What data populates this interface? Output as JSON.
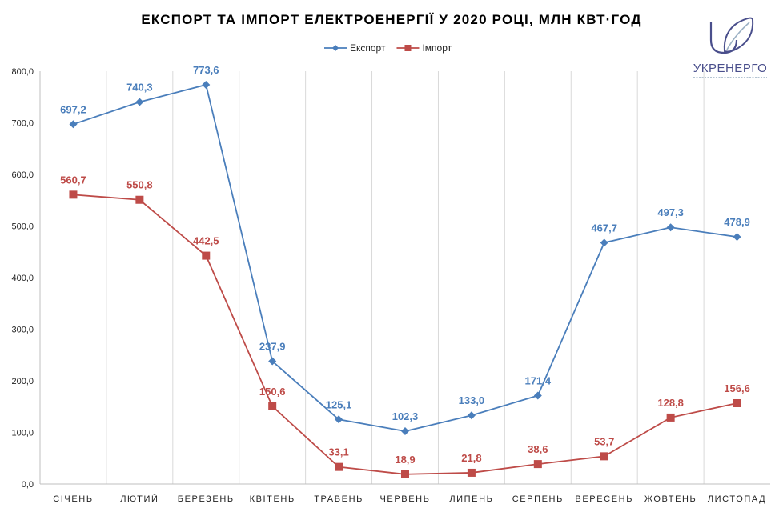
{
  "logo": {
    "name": "УКРЕНЕРГО",
    "color": "#4a4f8c",
    "leaf_color": "#9bb0c4"
  },
  "chart_data": {
    "type": "line",
    "title": "ЕКСПОРТ ТА ІМПОРТ ЕЛЕКТРОЕНЕРГІЇ У 2020 РОЦІ, МЛН КВТ·ГОД",
    "categories": [
      "СІЧЕНЬ",
      "ЛЮТИЙ",
      "БЕРЕЗЕНЬ",
      "КВІТЕНЬ",
      "ТРАВЕНЬ",
      "ЧЕРВЕНЬ",
      "ЛИПЕНЬ",
      "СЕРПЕНЬ",
      "ВЕРЕСЕНЬ",
      "ЖОВТЕНЬ",
      "ЛИСТОПАД"
    ],
    "series": [
      {
        "name": "Експорт",
        "color": "#4a7ebb",
        "marker": "diamond",
        "values": [
          697.2,
          740.3,
          773.6,
          237.9,
          125.1,
          102.3,
          133.0,
          171.4,
          467.7,
          497.3,
          478.9
        ],
        "labels": [
          "697,2",
          "740,3",
          "773,6",
          "237,9",
          "125,1",
          "102,3",
          "133,0",
          "171,4",
          "467,7",
          "497,3",
          "478,9"
        ]
      },
      {
        "name": "Імпорт",
        "color": "#be4b48",
        "marker": "square",
        "values": [
          560.7,
          550.8,
          442.5,
          150.6,
          33.1,
          18.9,
          21.8,
          38.6,
          53.7,
          128.8,
          156.6
        ],
        "labels": [
          "560,7",
          "550,8",
          "442,5",
          "150,6",
          "33,1",
          "18,9",
          "21,8",
          "38,6",
          "53,7",
          "128,8",
          "156,6"
        ]
      }
    ],
    "ylim": [
      0,
      800
    ],
    "yticks": [
      "0,0",
      "100,0",
      "200,0",
      "300,0",
      "400,0",
      "500,0",
      "600,0",
      "700,0",
      "800,0"
    ],
    "xlabel": "",
    "ylabel": "",
    "grid": "vertical",
    "legend": "top-center"
  }
}
